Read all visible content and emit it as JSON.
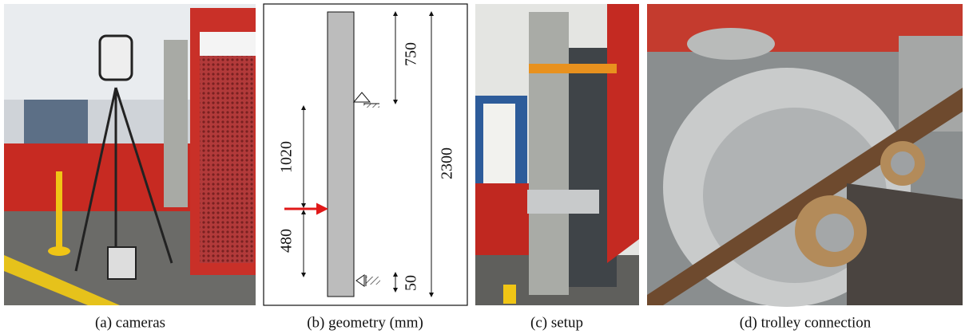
{
  "figure": {
    "panels": [
      {
        "caption": "(a) cameras"
      },
      {
        "caption": "(b) geometry (mm)"
      },
      {
        "caption": "(c) setup"
      },
      {
        "caption": "(d) trolley connection"
      }
    ],
    "geometry": {
      "dimensions": [
        "750",
        "2300",
        "1020",
        "480",
        "50"
      ]
    }
  }
}
